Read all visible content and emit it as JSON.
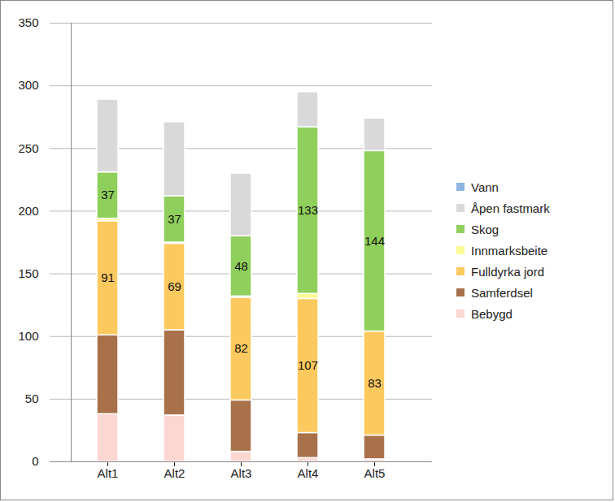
{
  "chart_data": {
    "type": "bar",
    "stacked": true,
    "grid": true,
    "legend": "right",
    "categories": [
      "Alt1",
      "Alt2",
      "Alt3",
      "Alt4",
      "Alt5"
    ],
    "ylim": [
      0,
      350
    ],
    "yticks": [
      0,
      50,
      100,
      150,
      200,
      250,
      300,
      350
    ],
    "series": [
      {
        "name": "Vann",
        "color": "#8eb4e3",
        "values": [
          0,
          0,
          0,
          0,
          0
        ]
      },
      {
        "name": "Åpen fastmark",
        "color": "#d9d9d9",
        "values": [
          58,
          59,
          50,
          28,
          26
        ]
      },
      {
        "name": "Skog",
        "color": "#8fcf5b",
        "values": [
          37,
          37,
          48,
          133,
          144
        ],
        "data_labels": true
      },
      {
        "name": "Innmarksbeite",
        "color": "#fafa96",
        "values": [
          2,
          1,
          1,
          4,
          0
        ]
      },
      {
        "name": "Fulldyrka jord",
        "color": "#fcc95e",
        "values": [
          91,
          69,
          82,
          107,
          83
        ],
        "data_labels": true
      },
      {
        "name": "Samferdsel",
        "color": "#a8714a",
        "values": [
          63,
          68,
          41,
          20,
          19
        ]
      },
      {
        "name": "Bebygd",
        "color": "#fcd7d2",
        "values": [
          38,
          37,
          8,
          3,
          2
        ]
      }
    ]
  }
}
